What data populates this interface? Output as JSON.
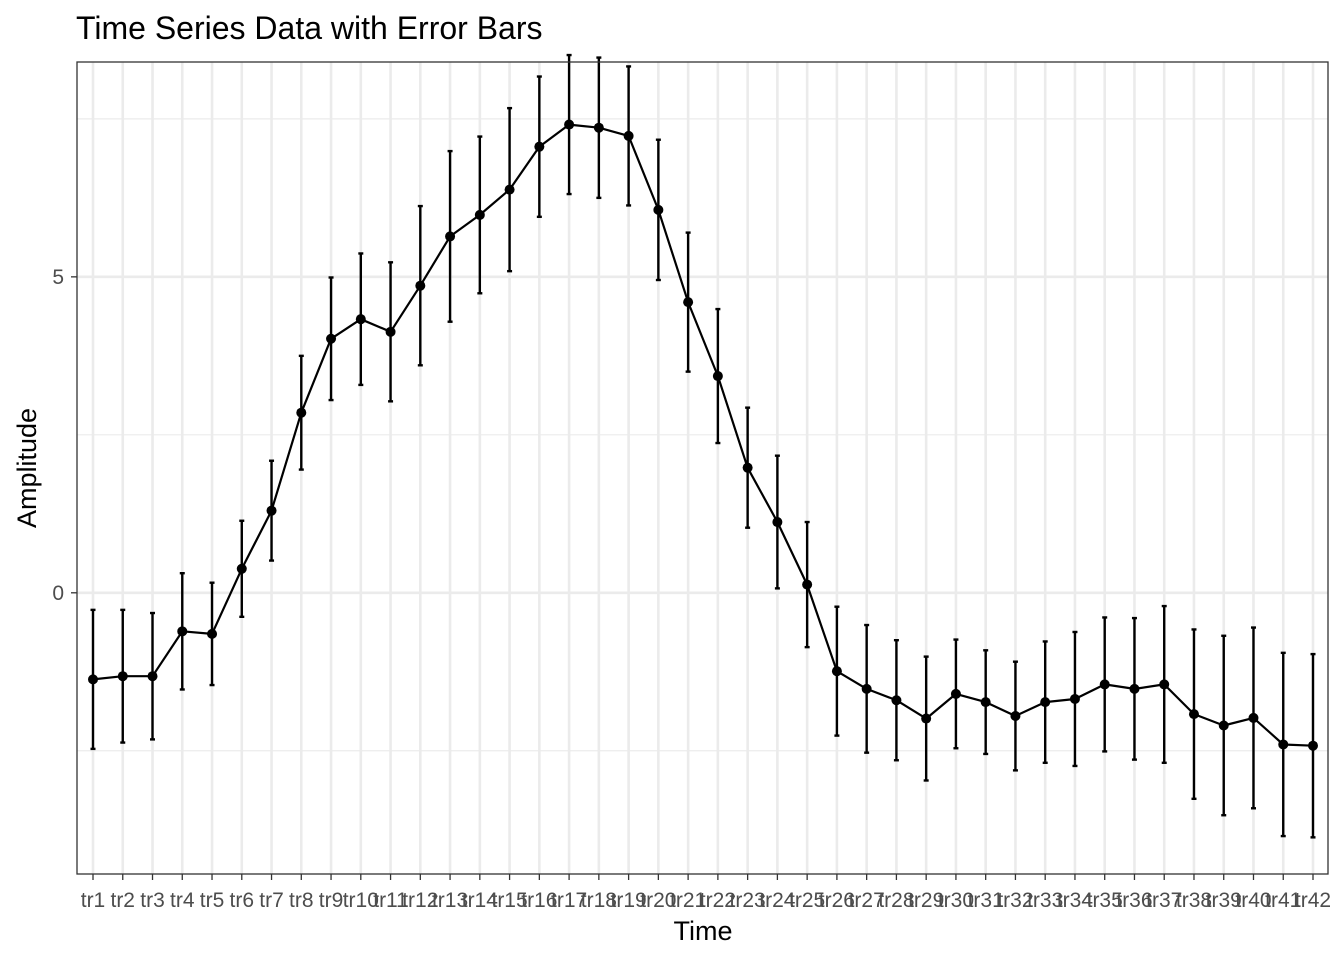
{
  "chart_data": {
    "type": "line",
    "title": "Time Series Data with Error Bars",
    "xlabel": "Time",
    "ylabel": "Amplitude",
    "ylim": [
      -4.45,
      8.4
    ],
    "y_ticks": [
      0,
      5
    ],
    "grid": true,
    "legend": "none",
    "colors": {
      "line": "#000000",
      "grid": "#ebebeb",
      "panel_border": "#333333",
      "tick_label": "#4d4d4d"
    },
    "categories": [
      "tr1",
      "tr2",
      "tr3",
      "tr4",
      "tr5",
      "tr6",
      "tr7",
      "tr8",
      "tr9",
      "tr10",
      "tr11",
      "tr12",
      "tr13",
      "tr14",
      "tr15",
      "tr16",
      "tr17",
      "tr18",
      "tr19",
      "tr20",
      "tr21",
      "tr22",
      "tr23",
      "tr24",
      "tr25",
      "tr26",
      "tr27",
      "tr28",
      "tr29",
      "tr30",
      "tr31",
      "tr32",
      "tr33",
      "tr34",
      "tr35",
      "tr36",
      "tr37",
      "tr38",
      "tr39",
      "tr40",
      "tr41",
      "tr42"
    ],
    "values": [
      -1.37,
      -1.32,
      -1.32,
      -0.61,
      -0.65,
      0.38,
      1.3,
      2.85,
      4.02,
      4.33,
      4.13,
      4.86,
      5.64,
      5.98,
      6.38,
      7.06,
      7.41,
      7.36,
      7.23,
      6.06,
      4.6,
      3.43,
      1.98,
      1.12,
      0.13,
      -1.24,
      -1.52,
      -1.7,
      -1.99,
      -1.6,
      -1.73,
      -1.95,
      -1.73,
      -1.68,
      -1.45,
      -1.52,
      -1.45,
      -1.92,
      -2.1,
      -1.98,
      -2.4,
      -2.42
    ],
    "error": [
      1.1,
      1.05,
      1.0,
      0.92,
      0.81,
      0.76,
      0.79,
      0.9,
      0.97,
      1.04,
      1.1,
      1.26,
      1.35,
      1.24,
      1.29,
      1.11,
      1.1,
      1.11,
      1.1,
      1.11,
      1.1,
      1.06,
      0.95,
      1.05,
      0.99,
      1.02,
      1.01,
      0.95,
      0.98,
      0.86,
      0.82,
      0.86,
      0.96,
      1.06,
      1.06,
      1.12,
      1.24,
      1.34,
      1.42,
      1.43,
      1.45,
      1.45
    ]
  }
}
